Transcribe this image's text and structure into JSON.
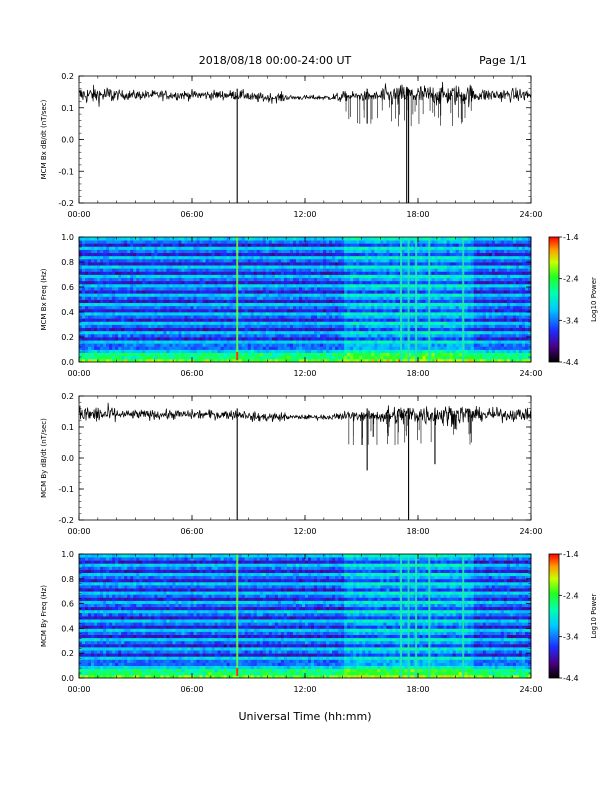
{
  "header": {
    "title": "2018/08/18  00:00-24:00 UT",
    "page": "Page 1/1"
  },
  "xlabel": "Universal Time (hh:mm)",
  "chart_data": [
    {
      "type": "line",
      "ylabel": "MCM Bx dB/dt (nT/sec)",
      "xlim": [
        0,
        24
      ],
      "ylim": [
        -0.2,
        0.2
      ],
      "x_ticks": [
        "00:00",
        "06:00",
        "12:00",
        "18:00",
        "24:00"
      ],
      "y_ticks": [
        "0.2",
        "0.1",
        "0.0",
        "-0.1",
        "-0.2"
      ],
      "baseline": 0.14,
      "spikes": [
        {
          "x": 8.4,
          "y": -0.2
        },
        {
          "x": 17.4,
          "y": -0.2
        },
        {
          "x": 17.5,
          "y": -0.2
        },
        {
          "x": 15.3,
          "y": 0.05
        }
      ]
    },
    {
      "type": "heatmap",
      "ylabel": "MCM Bx Freq (Hz)",
      "xlim": [
        0,
        24
      ],
      "ylim": [
        0.0,
        1.0
      ],
      "x_ticks": [
        "00:00",
        "06:00",
        "12:00",
        "18:00",
        "24:00"
      ],
      "y_ticks": [
        "1.0",
        "0.8",
        "0.6",
        "0.4",
        "0.2",
        "0.0"
      ],
      "colorbar": {
        "label": "Log10 Power",
        "range": [
          -4.4,
          -1.4
        ],
        "ticks": [
          "-1.4",
          "-2.4",
          "-3.4",
          "-4.4"
        ]
      },
      "bright_lines_hours": [
        8.4,
        17.1,
        17.5,
        17.9,
        18.6,
        20.4
      ]
    },
    {
      "type": "line",
      "ylabel": "MCM By dB/dt (nT/sec)",
      "xlim": [
        0,
        24
      ],
      "ylim": [
        -0.2,
        0.2
      ],
      "x_ticks": [
        "00:00",
        "06:00",
        "12:00",
        "18:00",
        "24:00"
      ],
      "y_ticks": [
        "0.2",
        "0.1",
        "0.0",
        "-0.1",
        "-0.2"
      ],
      "baseline": 0.14,
      "spikes": [
        {
          "x": 8.4,
          "y": -0.2
        },
        {
          "x": 17.5,
          "y": -0.2
        },
        {
          "x": 15.3,
          "y": -0.04
        },
        {
          "x": 18.9,
          "y": -0.02
        }
      ]
    },
    {
      "type": "heatmap",
      "ylabel": "MCM By Freq (Hz)",
      "xlim": [
        0,
        24
      ],
      "ylim": [
        0.0,
        1.0
      ],
      "x_ticks": [
        "00:00",
        "06:00",
        "12:00",
        "18:00",
        "24:00"
      ],
      "y_ticks": [
        "1.0",
        "0.8",
        "0.6",
        "0.4",
        "0.2",
        "0.0"
      ],
      "colorbar": {
        "label": "Log10 Power",
        "range": [
          -4.4,
          -1.4
        ],
        "ticks": [
          "-1.4",
          "-2.4",
          "-3.4",
          "-4.4"
        ]
      },
      "bright_lines_hours": [
        8.4,
        17.1,
        17.5,
        17.9,
        18.6,
        20.4
      ]
    }
  ]
}
